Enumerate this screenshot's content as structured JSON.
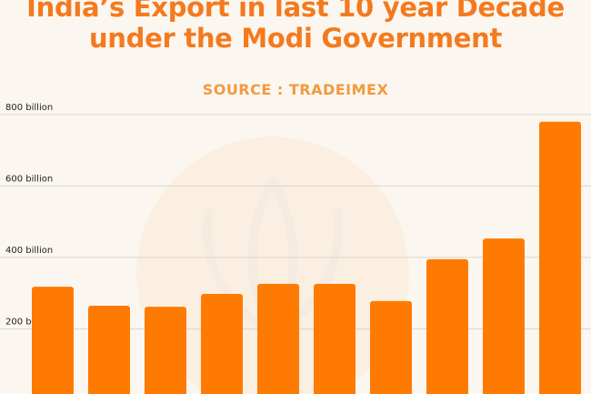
{
  "chart_data": {
    "type": "bar",
    "title": "India’s Export in last 10 year Decade under the Modi Government",
    "subtitle": "SOURCE : TRADEIMEX",
    "categories": [
      null,
      null,
      null,
      null,
      null,
      null,
      null,
      null,
      null,
      null
    ],
    "values": [
      318,
      265,
      262,
      298,
      326,
      326,
      278,
      395,
      453,
      780
    ],
    "color": "#ff7a00",
    "ylim": [
      0,
      820
    ],
    "yticks": [
      {
        "value": 200,
        "label": "200 billion"
      },
      {
        "value": 400,
        "label": "400 billion"
      },
      {
        "value": 600,
        "label": "600 billion"
      },
      {
        "value": 800,
        "label": "800 billion"
      }
    ],
    "grid": true
  }
}
